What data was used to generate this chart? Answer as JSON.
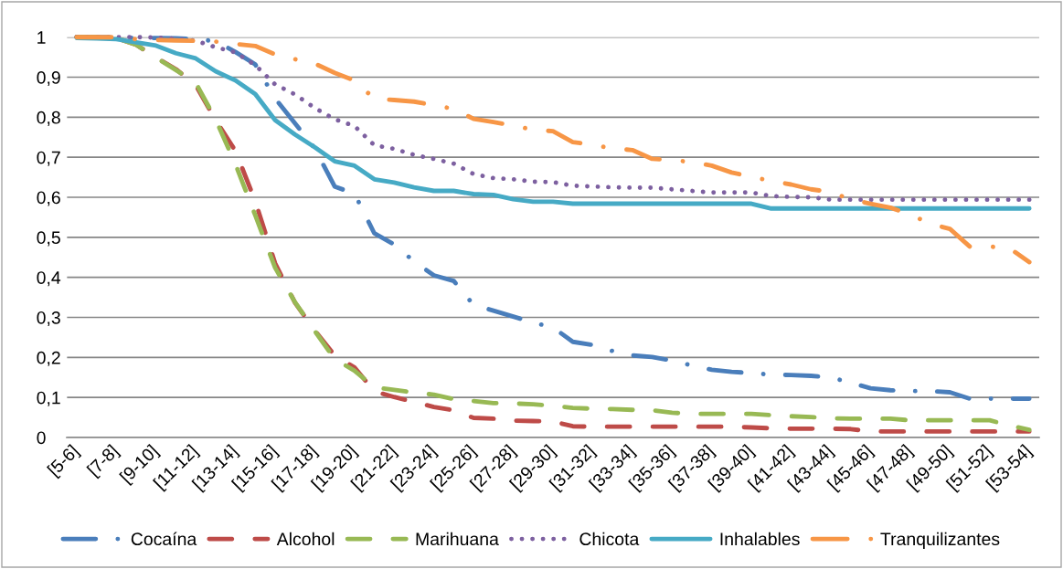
{
  "chart_data": {
    "type": "line",
    "categories": [
      "[5-6]",
      null,
      "[7-8]",
      null,
      "[9-10]",
      null,
      "[11-12]",
      null,
      "[13-14]",
      null,
      "[15-16]",
      null,
      "[17-18]",
      null,
      "[19-20]",
      null,
      "[21-22]",
      null,
      "[23-24]",
      null,
      "[25-26]",
      null,
      "[27-28]",
      null,
      "[29-30]",
      null,
      "[31-32]",
      null,
      "[33-34]",
      null,
      "[35-36]",
      null,
      "[37-38]",
      null,
      "[39-40]",
      null,
      "[41-42]",
      null,
      "[43-44]",
      null,
      "[45-46]",
      null,
      "[47-48]",
      null,
      "[49-50]",
      null,
      "[51-52]",
      null,
      "[53-54]"
    ],
    "ylim": [
      0,
      1
    ],
    "yticks": [
      0,
      {
        "value": 0.1,
        "label": "0,1"
      },
      {
        "value": 0.2,
        "label": "0,2"
      },
      {
        "value": 0.3,
        "label": "0,3"
      },
      {
        "value": 0.4,
        "label": "0,4"
      },
      {
        "value": 0.5,
        "label": "0,5"
      },
      {
        "value": 0.6,
        "label": "0,6"
      },
      {
        "value": 0.7,
        "label": "0,7"
      },
      {
        "value": 0.8,
        "label": "0,8"
      },
      {
        "value": 0.9,
        "label": "0,9"
      },
      1
    ],
    "grid": "y",
    "legend": "bottom",
    "series": [
      {
        "name": "Cocaína",
        "color": "#4a7ebb",
        "line_style": "dashdot",
        "values": [
          1.0,
          1.0,
          1.0,
          0.998,
          0.998,
          0.997,
          0.995,
          0.99,
          0.963,
          0.932,
          0.847,
          0.785,
          0.722,
          0.627,
          0.609,
          0.51,
          0.482,
          0.44,
          0.405,
          0.391,
          0.331,
          0.317,
          0.302,
          0.287,
          0.275,
          0.239,
          0.231,
          0.216,
          0.205,
          0.201,
          0.192,
          0.18,
          0.169,
          0.164,
          0.161,
          0.157,
          0.156,
          0.154,
          0.15,
          0.137,
          0.123,
          0.118,
          0.116,
          0.116,
          0.113,
          0.097,
          0.097,
          0.097,
          0.097
        ]
      },
      {
        "name": "Alcohol",
        "color": "#be4b48",
        "line_style": "dashed",
        "values": [
          1.0,
          1.0,
          0.998,
          0.981,
          0.949,
          0.92,
          0.88,
          0.793,
          0.716,
          0.59,
          0.435,
          0.337,
          0.267,
          0.205,
          0.175,
          0.115,
          0.101,
          0.089,
          0.076,
          0.068,
          0.049,
          0.047,
          0.042,
          0.041,
          0.04,
          0.028,
          0.027,
          0.027,
          0.027,
          0.027,
          0.027,
          0.027,
          0.027,
          0.027,
          0.025,
          0.023,
          0.022,
          0.022,
          0.022,
          0.021,
          0.015,
          0.015,
          0.015,
          0.015,
          0.015,
          0.015,
          0.015,
          0.015,
          0.015
        ]
      },
      {
        "name": "Marihuana",
        "color": "#98b954",
        "line_style": "dashed",
        "values": [
          1.0,
          1.0,
          0.998,
          0.981,
          0.949,
          0.918,
          0.886,
          0.795,
          0.683,
          0.555,
          0.424,
          0.338,
          0.266,
          0.196,
          0.167,
          0.125,
          0.119,
          0.112,
          0.107,
          0.096,
          0.091,
          0.086,
          0.085,
          0.083,
          0.079,
          0.074,
          0.072,
          0.071,
          0.069,
          0.068,
          0.062,
          0.059,
          0.059,
          0.059,
          0.059,
          0.056,
          0.053,
          0.051,
          0.048,
          0.047,
          0.047,
          0.047,
          0.043,
          0.043,
          0.043,
          0.043,
          0.043,
          0.03,
          0.019
        ]
      },
      {
        "name": "Chicota",
        "color": "#7d60a0",
        "line_style": "dotted",
        "values": [
          1.0,
          1.0,
          1.0,
          1.0,
          0.999,
          0.996,
          0.991,
          0.975,
          0.962,
          0.93,
          0.882,
          0.857,
          0.823,
          0.795,
          0.778,
          0.73,
          0.721,
          0.706,
          0.696,
          0.684,
          0.658,
          0.648,
          0.645,
          0.639,
          0.638,
          0.629,
          0.627,
          0.625,
          0.624,
          0.624,
          0.62,
          0.616,
          0.612,
          0.612,
          0.612,
          0.603,
          0.601,
          0.6,
          0.594,
          0.594,
          0.594,
          0.594,
          0.594,
          0.594,
          0.594,
          0.594,
          0.594,
          0.594,
          0.594
        ]
      },
      {
        "name": "Inhalables",
        "color": "#46aac5",
        "line_style": "solid",
        "values": [
          0.998,
          0.997,
          0.995,
          0.987,
          0.979,
          0.96,
          0.947,
          0.915,
          0.892,
          0.858,
          0.793,
          0.757,
          0.725,
          0.69,
          0.679,
          0.645,
          0.637,
          0.625,
          0.616,
          0.616,
          0.608,
          0.606,
          0.595,
          0.589,
          0.589,
          0.584,
          0.584,
          0.584,
          0.584,
          0.584,
          0.584,
          0.584,
          0.584,
          0.584,
          0.584,
          0.572,
          0.572,
          0.572,
          0.572,
          0.572,
          0.572,
          0.572,
          0.572,
          0.572,
          0.572,
          0.572,
          0.572,
          0.572,
          0.572
        ]
      },
      {
        "name": "Tranquilizantes",
        "color": "#f79646",
        "line_style": "dashdot",
        "values": [
          1.0,
          1.0,
          1.0,
          0.995,
          0.993,
          0.992,
          0.991,
          0.989,
          0.983,
          0.978,
          0.957,
          0.945,
          0.934,
          0.911,
          0.892,
          0.846,
          0.843,
          0.839,
          0.83,
          0.821,
          0.796,
          0.788,
          0.779,
          0.769,
          0.765,
          0.738,
          0.731,
          0.722,
          0.718,
          0.696,
          0.693,
          0.688,
          0.679,
          0.662,
          0.651,
          0.641,
          0.632,
          0.62,
          0.613,
          0.595,
          0.584,
          0.574,
          0.557,
          0.534,
          0.521,
          0.477,
          0.477,
          0.473,
          0.438
        ]
      }
    ]
  }
}
